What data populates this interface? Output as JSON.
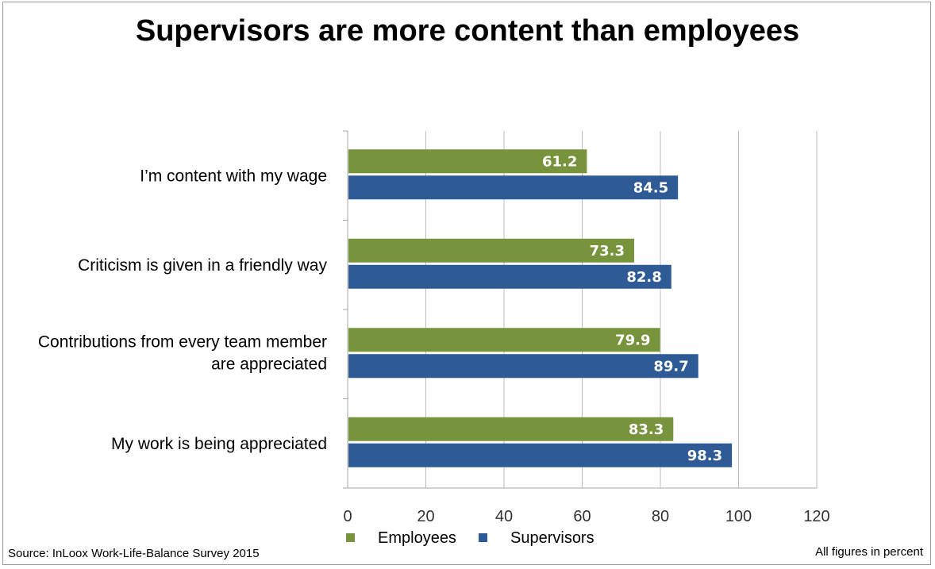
{
  "chart_data": {
    "type": "bar",
    "orientation": "horizontal",
    "title": "Supervisors are more content than employees",
    "categories": [
      [
        "I’m content with my wage"
      ],
      [
        "Criticism is given in a friendly way"
      ],
      [
        "Contributions from every team member",
        "are appreciated"
      ],
      [
        "My work is being appreciated"
      ]
    ],
    "series": [
      {
        "name": "Employees",
        "color": "#77933c",
        "values": [
          61.2,
          73.3,
          79.9,
          83.3
        ]
      },
      {
        "name": "Supervisors",
        "color": "#2e5a95",
        "values": [
          84.5,
          82.8,
          89.7,
          98.3
        ]
      }
    ],
    "xlim": [
      0,
      120
    ],
    "xticks": [
      0,
      20,
      40,
      60,
      80,
      100,
      120
    ],
    "grid": true,
    "legend": "bottom-center",
    "source": "Source: InLoox Work-Life-Balance Survey 2015",
    "note": "All figures in percent"
  }
}
